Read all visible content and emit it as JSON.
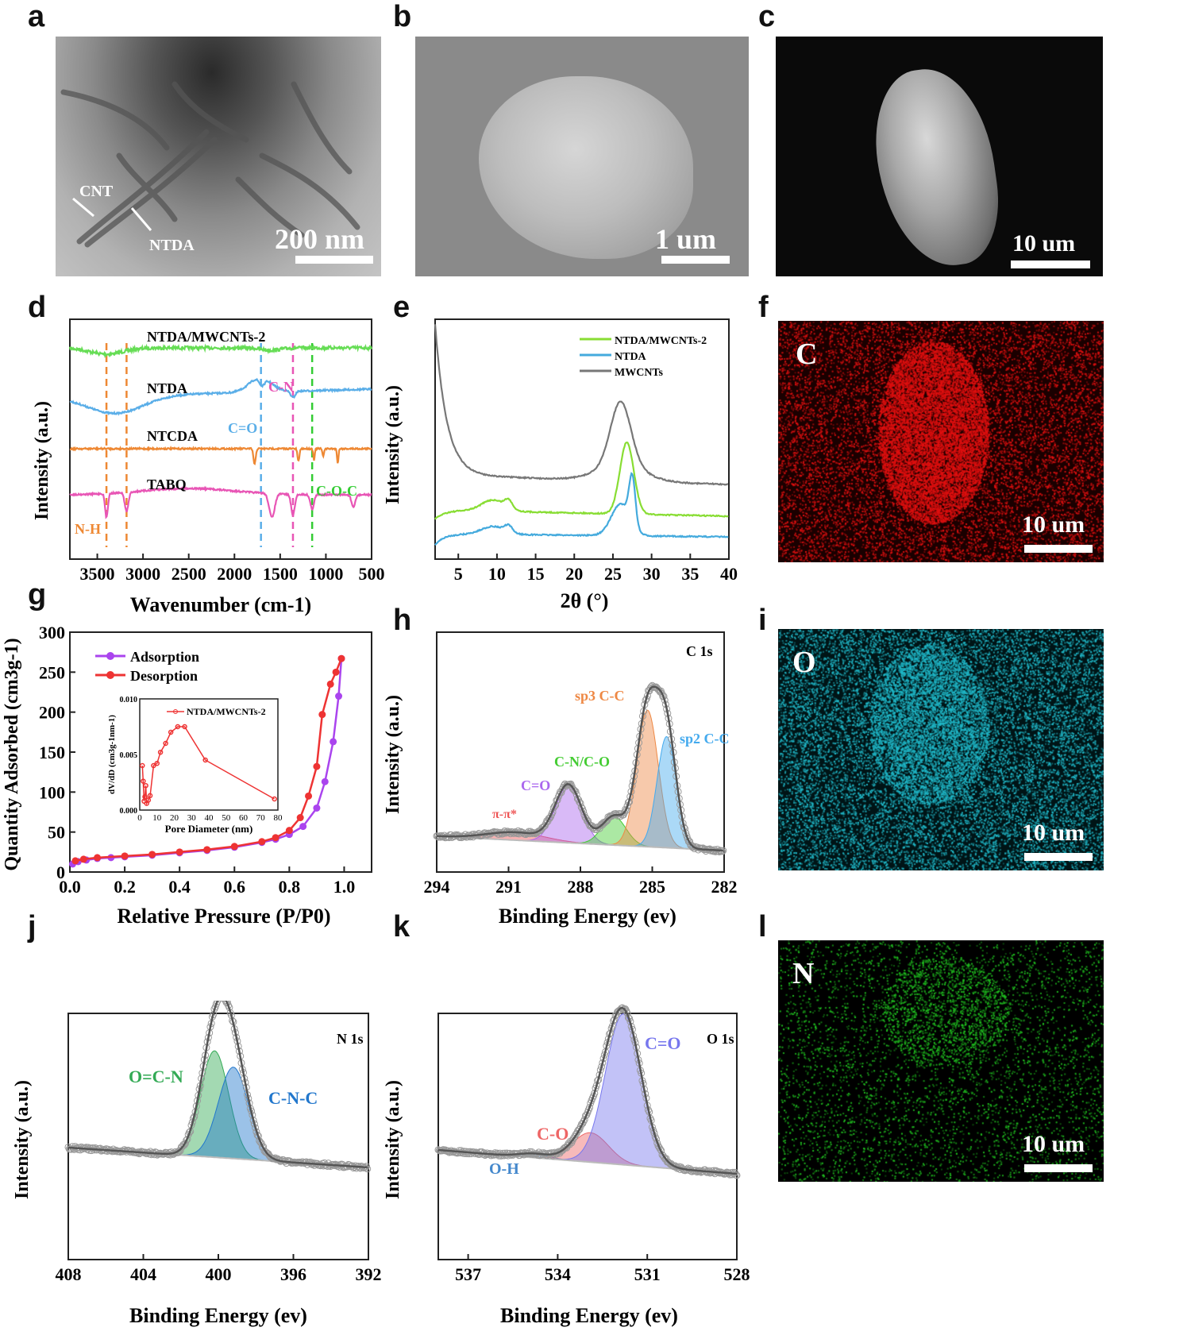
{
  "panels": {
    "a": {
      "letter": "a",
      "scale": "200 nm",
      "labels": {
        "cnt": "CNT",
        "ntda": "NTDA"
      }
    },
    "b": {
      "letter": "b",
      "scale": "1 um"
    },
    "c": {
      "letter": "c",
      "scale": "10 um"
    },
    "f": {
      "letter": "f",
      "element": "C",
      "scale": "10 um",
      "color": "#e01010"
    },
    "i": {
      "letter": "i",
      "element": "O",
      "scale": "10 um",
      "color": "#20b8c8"
    },
    "l": {
      "letter": "l",
      "element": "N",
      "scale": "10 um",
      "color": "#20c020"
    }
  },
  "letters": {
    "d": "d",
    "e": "e",
    "g": "g",
    "h": "h",
    "j": "j",
    "k": "k"
  },
  "chart_data": [
    {
      "id": "d",
      "type": "line",
      "xlabel": "Wavenumber (cm-1)",
      "ylabel": "Intensity (a.u.)",
      "xlim": [
        3800,
        500
      ],
      "x_reversed": true,
      "xticks": [
        3500,
        3000,
        2500,
        2000,
        1500,
        1000,
        500
      ],
      "series": [
        {
          "name": "NTDA/MWCNTs-2",
          "color": "#66dd55"
        },
        {
          "name": "NTDA",
          "color": "#5aaee8"
        },
        {
          "name": "NTCDA",
          "color": "#ee8833"
        },
        {
          "name": "TABQ",
          "color": "#e855b5"
        }
      ],
      "annotations": [
        {
          "text": "C-N",
          "color": "#e855b5"
        },
        {
          "text": "C=O",
          "color": "#5aaee8"
        },
        {
          "text": "C-O-C",
          "color": "#33cc33"
        },
        {
          "text": "N-H",
          "color": "#ee8833"
        }
      ],
      "markers": [
        {
          "x": 3400,
          "color": "#ee8833"
        },
        {
          "x": 3180,
          "color": "#ee8833"
        },
        {
          "x": 1710,
          "color": "#5aaee8"
        },
        {
          "x": 1360,
          "color": "#e855b5"
        },
        {
          "x": 1150,
          "color": "#33cc33"
        }
      ]
    },
    {
      "id": "e",
      "type": "line",
      "xlabel": "2θ (°)",
      "ylabel": "Intensity (a.u.)",
      "xlim": [
        2,
        40
      ],
      "xticks": [
        5,
        10,
        15,
        20,
        25,
        30,
        35,
        40
      ],
      "series": [
        {
          "name": "NTDA/MWCNTs-2",
          "color": "#88dd33"
        },
        {
          "name": "NTDA",
          "color": "#44aadd"
        },
        {
          "name": "MWCNTs",
          "color": "#777777"
        }
      ]
    },
    {
      "id": "g",
      "type": "line",
      "xlabel": "Relative Pressure (P/P0)",
      "ylabel": "Quantity Adsorbed (cm3g-1)",
      "xlim": [
        0,
        1.1
      ],
      "ylim": [
        0,
        300
      ],
      "xticks": [
        0.0,
        0.2,
        0.4,
        0.6,
        0.8,
        1.0
      ],
      "yticks": [
        0,
        50,
        100,
        150,
        200,
        250,
        300
      ],
      "series": [
        {
          "name": "Adsorption",
          "color": "#aa44ee",
          "x": [
            0.01,
            0.03,
            0.06,
            0.1,
            0.15,
            0.2,
            0.3,
            0.4,
            0.5,
            0.6,
            0.7,
            0.75,
            0.8,
            0.85,
            0.9,
            0.93,
            0.96,
            0.98,
            0.99
          ],
          "y": [
            10,
            13,
            15,
            17,
            18,
            19,
            21,
            24,
            27,
            31,
            37,
            41,
            47,
            57,
            80,
            113,
            163,
            220,
            267
          ]
        },
        {
          "name": "Desorption",
          "color": "#ee3333",
          "x": [
            0.99,
            0.97,
            0.95,
            0.92,
            0.9,
            0.87,
            0.84,
            0.8,
            0.75,
            0.7,
            0.6,
            0.5,
            0.4,
            0.3,
            0.2,
            0.1,
            0.05,
            0.02
          ],
          "y": [
            267,
            250,
            235,
            197,
            132,
            95,
            68,
            52,
            43,
            38,
            32,
            28,
            25,
            22,
            20,
            18,
            16,
            14
          ]
        }
      ],
      "inset": {
        "xlabel": "Pore Diameter (nm)",
        "ylabel": "dV/dD (cm3g-1nm-1)",
        "xlim": [
          0,
          80
        ],
        "ylim": [
          0,
          0.01
        ],
        "xticks": [
          0,
          10,
          20,
          30,
          40,
          50,
          60,
          70,
          80
        ],
        "yticks": [
          0.0,
          0.005,
          0.01
        ],
        "series": [
          {
            "name": "NTDA/MWCNTs-2",
            "color": "#ee3333",
            "x": [
              1.5,
              2,
              2.5,
              3,
              3.5,
              4,
              5,
              6,
              8,
              10,
              12,
              15,
              18,
              22,
              26,
              38,
              78
            ],
            "y": [
              0.004,
              0.0026,
              0.0008,
              0.0012,
              0.0022,
              0.0006,
              0.0009,
              0.0013,
              0.004,
              0.0042,
              0.0052,
              0.006,
              0.007,
              0.0075,
              0.0075,
              0.0045,
              0.001
            ]
          }
        ]
      }
    },
    {
      "id": "h",
      "type": "line",
      "xlabel": "Binding Energy (ev)",
      "ylabel": "Intensity (a.u.)",
      "xlim": [
        294,
        282
      ],
      "x_reversed": true,
      "xticks": [
        294,
        291,
        288,
        285,
        282
      ],
      "title": "C 1s",
      "peaks": [
        {
          "name": "π-π*",
          "center": 290.7,
          "color": "#ee5555"
        },
        {
          "name": "C=O",
          "center": 288.5,
          "color": "#aa66ee"
        },
        {
          "name": "C-N/C-O",
          "center": 286.6,
          "color": "#44cc33"
        },
        {
          "name": "sp3 C-C",
          "center": 285.2,
          "color": "#ee8844"
        },
        {
          "name": "sp2 C-C",
          "center": 284.4,
          "color": "#44aaee"
        }
      ]
    },
    {
      "id": "j",
      "type": "line",
      "xlabel": "Binding Energy (ev)",
      "ylabel": "Intensity (a.u.)",
      "xlim": [
        408,
        392
      ],
      "x_reversed": true,
      "xticks": [
        408,
        404,
        400,
        396,
        392
      ],
      "title": "N 1s",
      "peaks": [
        {
          "name": "O=C-N",
          "center": 400.2,
          "color": "#33aa55"
        },
        {
          "name": "C-N-C",
          "center": 399.2,
          "color": "#2277cc"
        }
      ]
    },
    {
      "id": "k",
      "type": "line",
      "xlabel": "Binding Energy (ev)",
      "ylabel": "Intensity (a.u.)",
      "xlim": [
        538,
        528
      ],
      "x_reversed": true,
      "xticks": [
        537,
        534,
        531,
        528
      ],
      "title": "O 1s",
      "peaks": [
        {
          "name": "O-H",
          "center": 534.8,
          "color": "#4488cc"
        },
        {
          "name": "C-O",
          "center": 532.9,
          "color": "#ee6666"
        },
        {
          "name": "C=O",
          "center": 531.8,
          "color": "#7777ee"
        }
      ]
    }
  ]
}
